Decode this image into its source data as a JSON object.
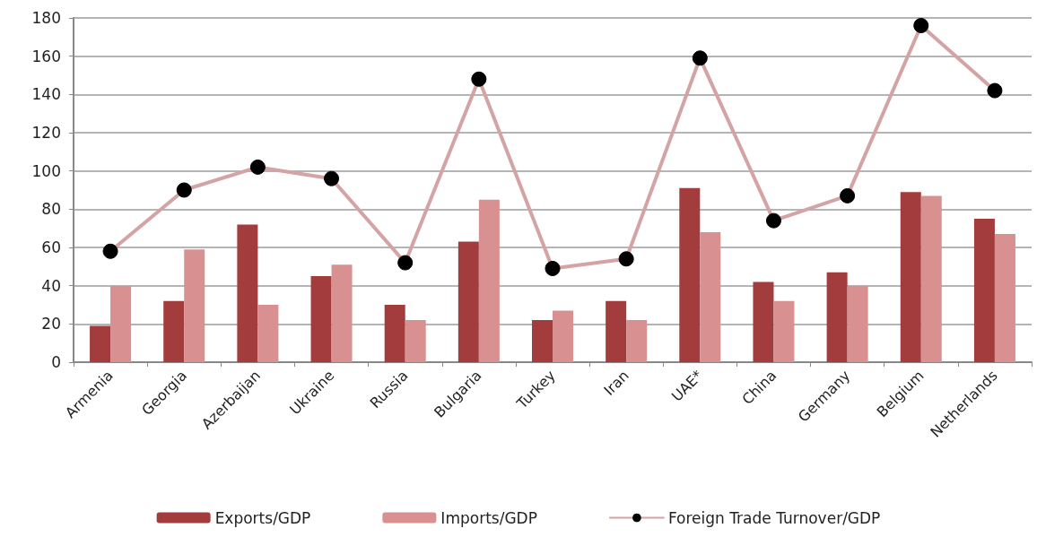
{
  "chart_data": {
    "type": "bar",
    "categories": [
      "Armenia",
      "Georgia",
      "Azerbaijan",
      "Ukraine",
      "Russia",
      "Bulgaria",
      "Turkey",
      "Iran",
      "UAE*",
      "China",
      "Germany",
      "Belgium",
      "Netherlands"
    ],
    "series": [
      {
        "name": "Exports/GDP",
        "color": "#a33c3c",
        "values": [
          19,
          32,
          72,
          45,
          30,
          63,
          22,
          32,
          91,
          42,
          47,
          89,
          75
        ]
      },
      {
        "name": "Imports/GDP",
        "color": "#d99090",
        "values": [
          40,
          59,
          30,
          51,
          22,
          85,
          27,
          22,
          68,
          32,
          40,
          87,
          67
        ]
      },
      {
        "name": "Foreign Trade Turnover/GDP",
        "type": "line",
        "color": "#d4a3a3",
        "marker": "circle",
        "values": [
          58,
          90,
          102,
          96,
          52,
          148,
          49,
          54,
          159,
          74,
          87,
          176,
          142
        ]
      }
    ],
    "ylim": [
      0,
      180
    ],
    "yticks": [
      0,
      20,
      40,
      60,
      80,
      100,
      120,
      140,
      160,
      180
    ],
    "grid": "y",
    "legend": "bottom"
  }
}
